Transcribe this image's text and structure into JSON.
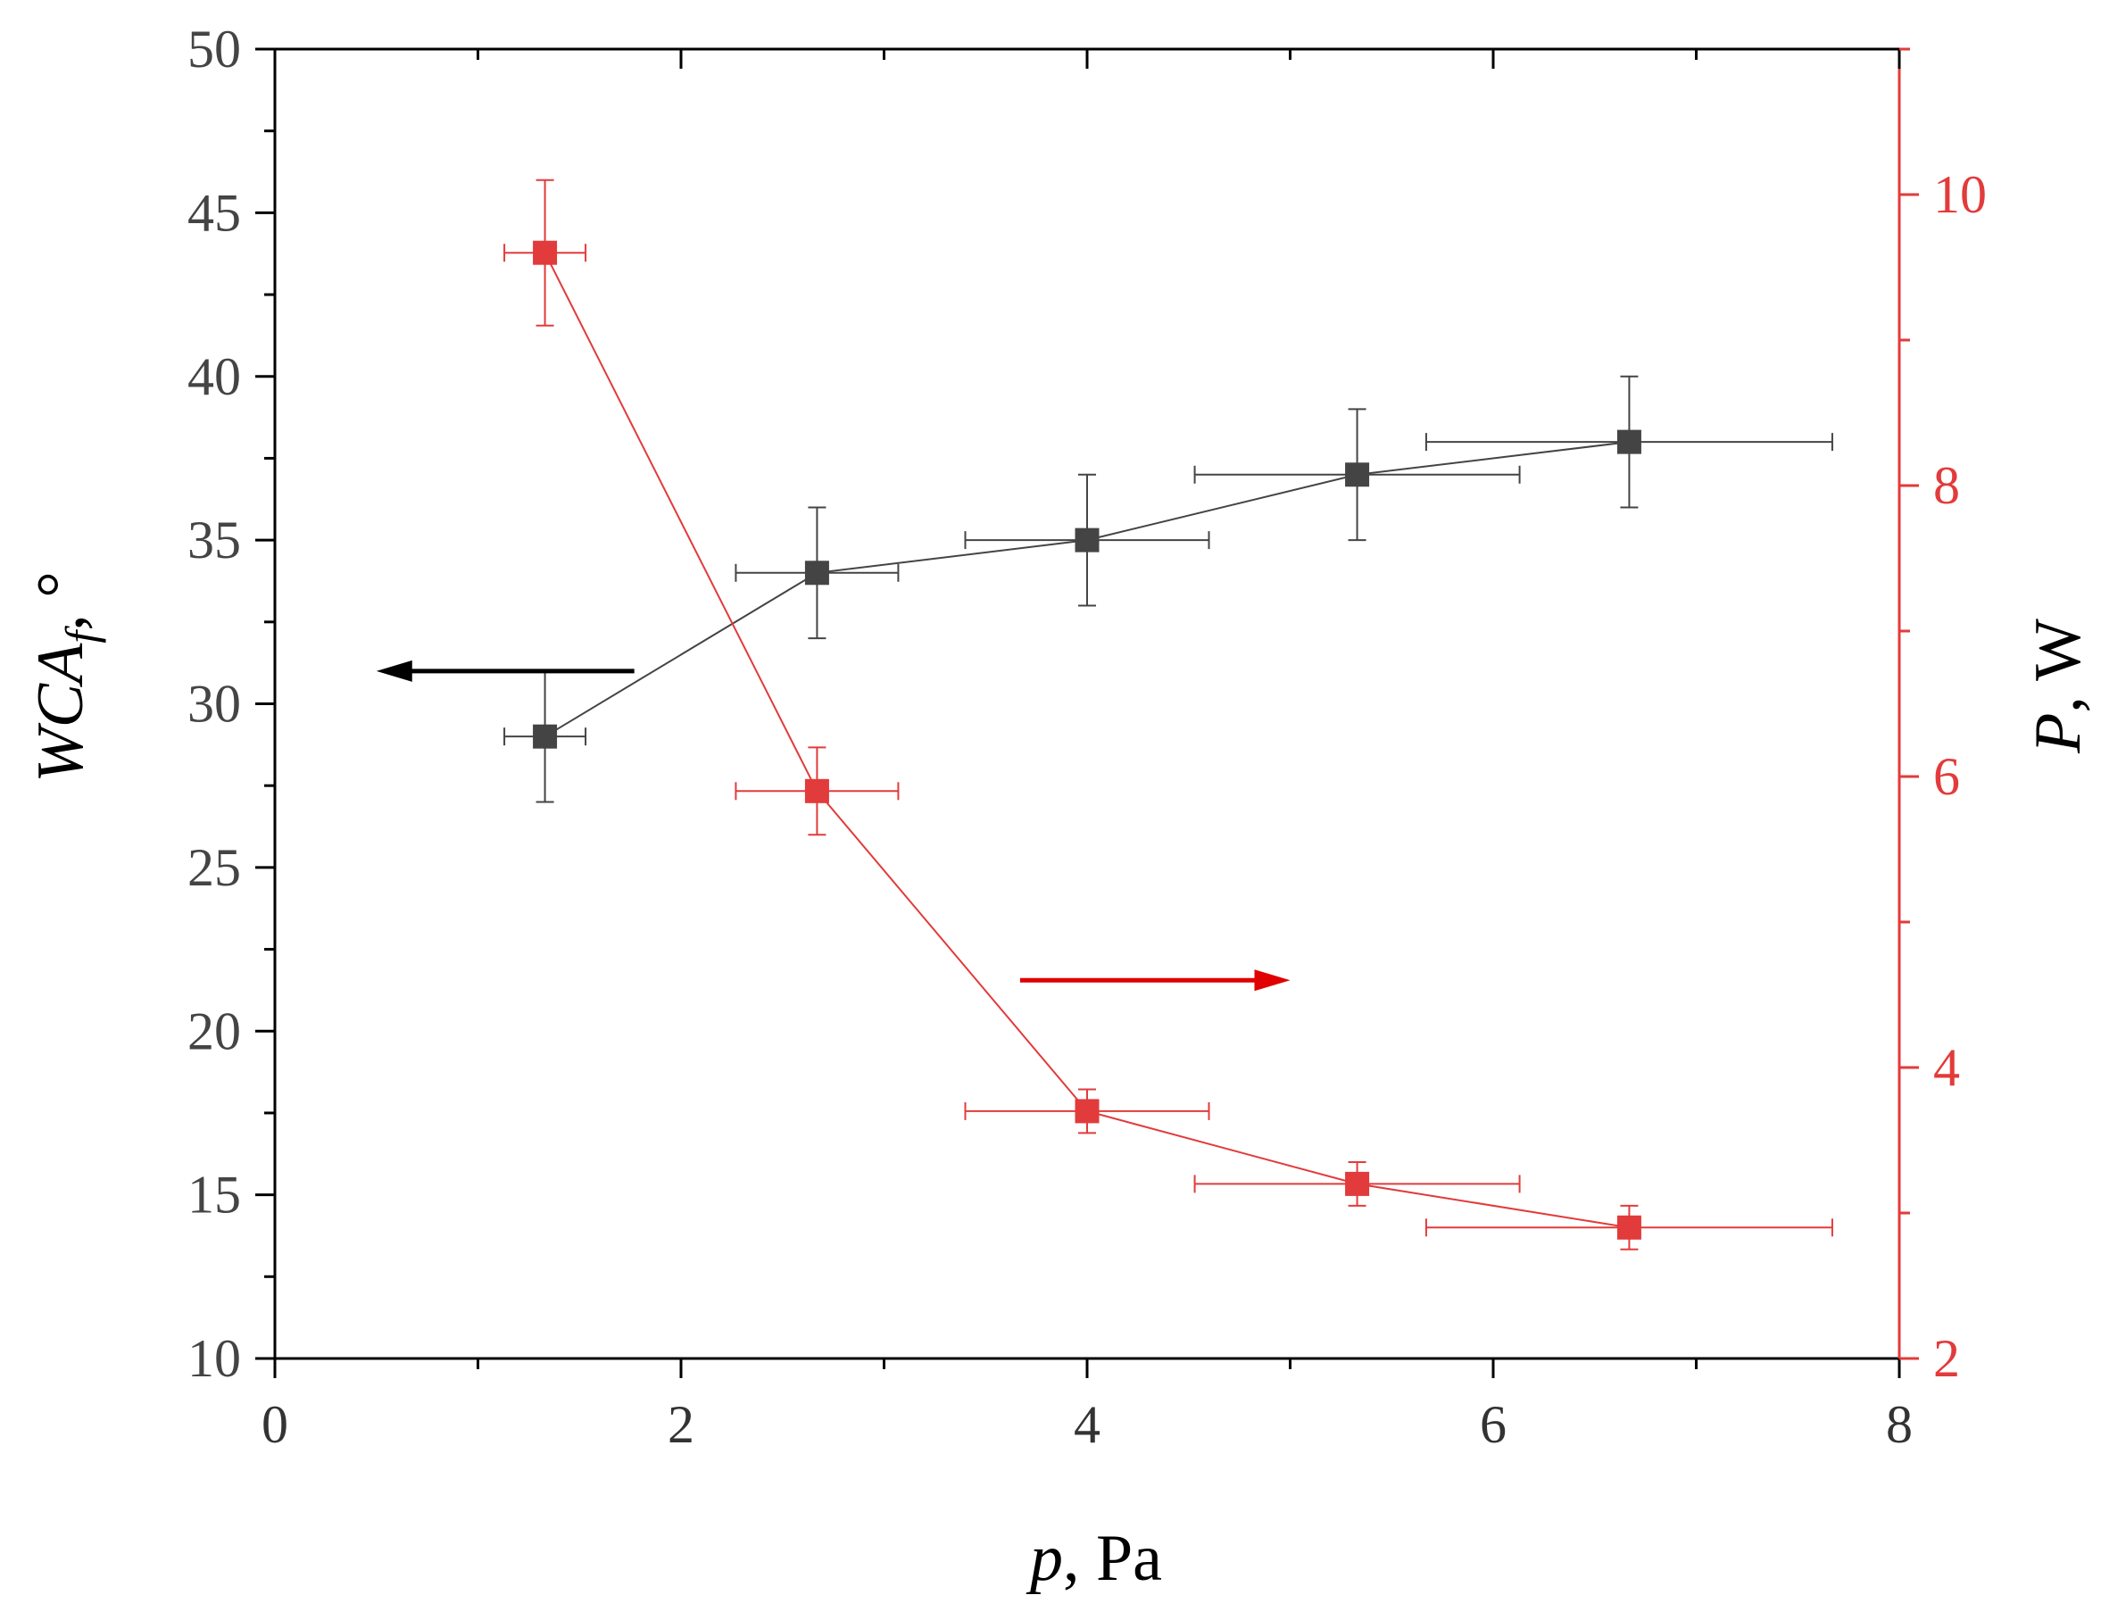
{
  "chart_data": {
    "type": "line",
    "title": "",
    "x_axis": {
      "label_var": "p",
      "label_unit": ", Pa",
      "range": [
        0,
        8
      ],
      "ticks": [
        "0",
        "2",
        "4",
        "6",
        "8"
      ],
      "tick_values": [
        0,
        2,
        4,
        6,
        8
      ],
      "minor_step": 1
    },
    "y_left": {
      "label_var": "WCA",
      "label_sub": "f",
      "label_unit": ", °",
      "range": [
        10,
        50
      ],
      "ticks": [
        "10",
        "15",
        "20",
        "25",
        "30",
        "35",
        "40",
        "45",
        "50"
      ],
      "tick_values": [
        10,
        15,
        20,
        25,
        30,
        35,
        40,
        45,
        50
      ],
      "minor_step": 2.5
    },
    "y_right": {
      "label_var": "P",
      "label_unit": ", W",
      "range": [
        2,
        11
      ],
      "ticks": [
        "2",
        "4",
        "6",
        "8",
        "10"
      ],
      "tick_values": [
        2,
        4,
        6,
        8,
        10
      ],
      "minor_step": 1
    },
    "series": [
      {
        "name": "WCA_f",
        "axis": "left",
        "color": "#444444",
        "x": [
          1.33,
          2.67,
          4.0,
          5.33,
          6.67
        ],
        "y": [
          29,
          34,
          35,
          37,
          38
        ],
        "x_err": [
          0.2,
          0.4,
          0.6,
          0.8,
          1.0
        ],
        "y_err": [
          2,
          2,
          2,
          2,
          2
        ]
      },
      {
        "name": "P",
        "axis": "right",
        "color": "#e23b3b",
        "x": [
          1.33,
          2.67,
          4.0,
          5.33,
          6.67
        ],
        "y": [
          9.6,
          5.9,
          3.7,
          3.2,
          2.9
        ],
        "x_err": [
          0.2,
          0.4,
          0.6,
          0.8,
          1.0
        ],
        "y_err": [
          0.5,
          0.3,
          0.15,
          0.15,
          0.15
        ]
      }
    ],
    "annotations": [
      {
        "name": "left-axis-arrow",
        "direction": "left",
        "color": "#000000",
        "x_from": 1.77,
        "x_to": 0.5,
        "y": 31,
        "axis": "left"
      },
      {
        "name": "right-axis-arrow",
        "direction": "right",
        "color": "#e00000",
        "x_from": 3.67,
        "x_to": 5.0,
        "y": 4.6,
        "axis": "right"
      }
    ],
    "grid": false,
    "legend": "none"
  }
}
